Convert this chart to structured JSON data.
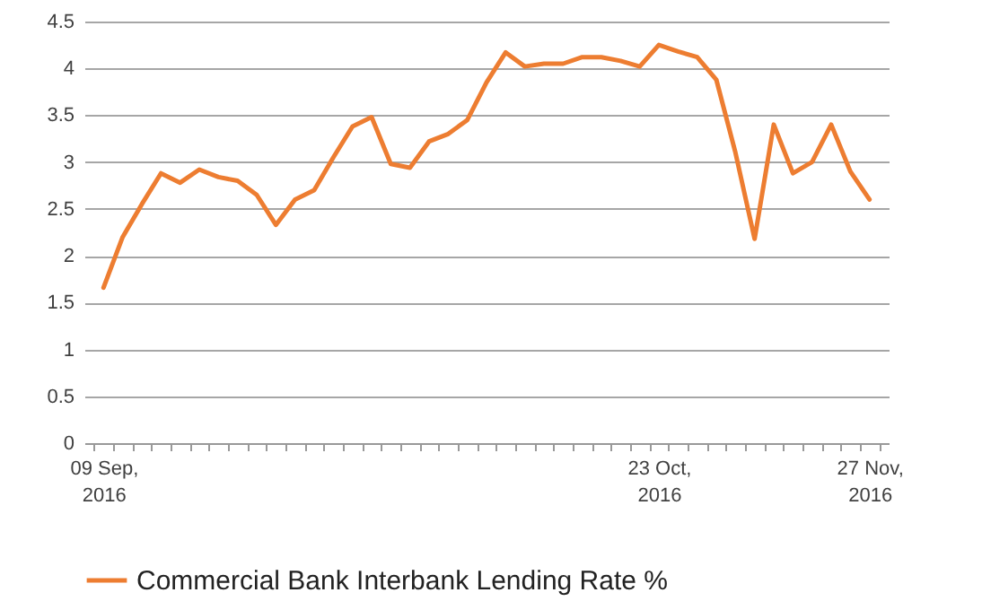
{
  "chart_data": {
    "type": "line",
    "categories": [
      "09 Sep, 2016",
      null,
      null,
      null,
      null,
      null,
      null,
      null,
      null,
      null,
      null,
      null,
      null,
      null,
      null,
      null,
      null,
      null,
      null,
      null,
      null,
      null,
      null,
      null,
      null,
      null,
      null,
      null,
      null,
      "23 Oct, 2016",
      null,
      null,
      null,
      null,
      null,
      null,
      null,
      null,
      null,
      null,
      "27 Nov, 2016"
    ],
    "series": [
      {
        "name": "Commercial Bank Interbank Lending Rate %",
        "color": "#ed7d31",
        "values": [
          1.66,
          2.2,
          2.55,
          2.88,
          2.78,
          2.92,
          2.84,
          2.8,
          2.65,
          2.33,
          2.6,
          2.7,
          3.05,
          3.38,
          3.48,
          2.98,
          2.94,
          3.22,
          3.3,
          3.45,
          3.85,
          4.17,
          4.02,
          4.05,
          4.05,
          4.12,
          4.12,
          4.08,
          4.02,
          4.25,
          4.18,
          4.12,
          3.88,
          3.1,
          2.18,
          3.4,
          2.88,
          3.0,
          3.4,
          2.9,
          2.6
        ]
      }
    ],
    "ylim": [
      0,
      4.5
    ],
    "yticks": [
      0,
      0.5,
      1,
      1.5,
      2,
      2.5,
      3,
      3.5,
      4,
      4.5
    ],
    "grid": "y",
    "legend": "bottom",
    "marker": "none",
    "line_style": "solid"
  }
}
